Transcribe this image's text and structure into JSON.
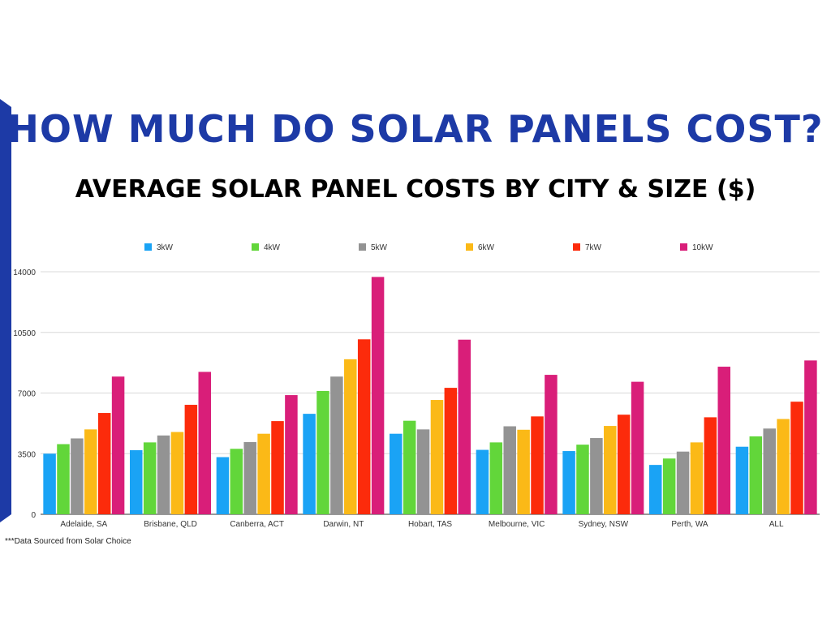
{
  "page": {
    "title": "HOW MUCH DO SOLAR PANELS COST?",
    "subtitle": "AVERAGE SOLAR PANEL COSTS BY CITY & SIZE ($)",
    "source_note": "***Data Sourced from Solar Choice",
    "accent_color": "#1d3aa6"
  },
  "chart_data": {
    "type": "bar",
    "legend_position": "top",
    "grid": true,
    "ylim": [
      0,
      14000
    ],
    "yticks": [
      "0",
      "3500",
      "7000",
      "10500",
      "14000"
    ],
    "categories": [
      "Adelaide, SA",
      "Brisbane, QLD",
      "Canberra, ACT",
      "Darwin, NT",
      "Hobart, TAS",
      "Melbourne, VIC",
      "Sydney, NSW",
      "Perth, WA",
      "ALL"
    ],
    "series": [
      {
        "name": "3kW",
        "color": "#1aa3f5",
        "values": [
          3500,
          3700,
          3300,
          5800,
          4650,
          3720,
          3650,
          2850,
          3900
        ]
      },
      {
        "name": "4kW",
        "color": "#62d63a",
        "values": [
          4050,
          4150,
          3780,
          7120,
          5400,
          4150,
          4020,
          3220,
          4500
        ]
      },
      {
        "name": "5kW",
        "color": "#939393",
        "values": [
          4380,
          4550,
          4170,
          7950,
          4900,
          5080,
          4400,
          3620,
          4950
        ]
      },
      {
        "name": "6kW",
        "color": "#fbb917",
        "values": [
          4900,
          4750,
          4650,
          8950,
          6600,
          4880,
          5100,
          4150,
          5500
        ]
      },
      {
        "name": "7kW",
        "color": "#fc2b0b",
        "values": [
          5850,
          6320,
          5380,
          10100,
          7300,
          5650,
          5750,
          5600,
          6500
        ]
      },
      {
        "name": "10kW",
        "color": "#d91e79",
        "values": [
          7950,
          8220,
          6880,
          13700,
          10080,
          8050,
          7650,
          8520,
          8880
        ]
      }
    ]
  }
}
